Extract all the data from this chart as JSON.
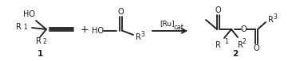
{
  "bg_color": "#ffffff",
  "text_color": "#1a1a1a",
  "figsize": [
    3.66,
    0.77
  ],
  "dpi": 100,
  "arrow_label": "[Ru]",
  "arrow_sublabel": "cat",
  "compound1_label": "1",
  "compound2_label": "2",
  "line_width": 1.3,
  "font_size_main": 7.0,
  "font_size_super": 5.5,
  "font_size_label": 7.5,
  "plus_font_size": 9.0
}
